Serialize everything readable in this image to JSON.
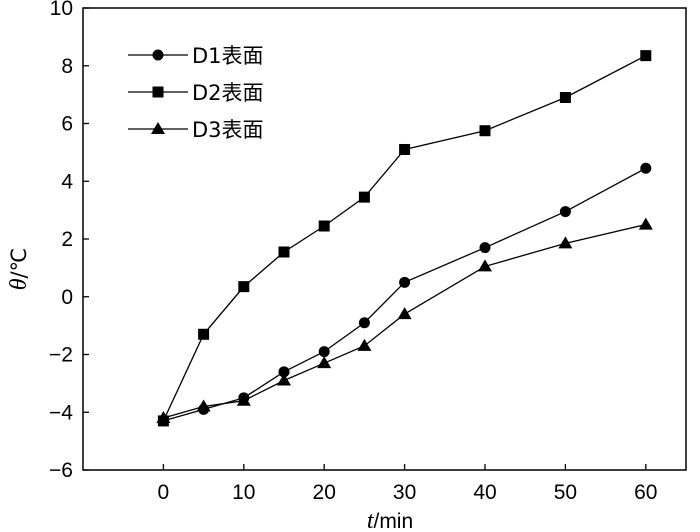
{
  "chart_data": {
    "type": "line",
    "xlabel": {
      "var": "t",
      "unit": "/min"
    },
    "ylabel": {
      "var": "θ",
      "unit": "/℃"
    },
    "xlim": [
      -10,
      65
    ],
    "ylim": [
      -6,
      10
    ],
    "xticks": [
      0,
      10,
      20,
      30,
      40,
      50,
      60
    ],
    "yticks": [
      -6,
      -4,
      -2,
      0,
      2,
      4,
      6,
      8,
      10
    ],
    "ytick_labels": [
      "−6",
      "−4",
      "−2",
      "0",
      "2",
      "4",
      "6",
      "8",
      "10"
    ],
    "legend_position": "top-left",
    "grid": false,
    "series": [
      {
        "name": "D1表面",
        "marker": "circle",
        "x": [
          0,
          5,
          10,
          15,
          20,
          25,
          30,
          40,
          50,
          60
        ],
        "values": [
          -4.3,
          -3.9,
          -3.5,
          -2.6,
          -1.9,
          -0.9,
          0.5,
          1.7,
          2.95,
          4.45
        ]
      },
      {
        "name": "D2表面",
        "marker": "square",
        "x": [
          0,
          5,
          10,
          15,
          20,
          25,
          30,
          40,
          50,
          60
        ],
        "values": [
          -4.3,
          -1.3,
          0.35,
          1.55,
          2.45,
          3.45,
          5.1,
          5.75,
          6.9,
          8.35
        ]
      },
      {
        "name": "D3表面",
        "marker": "triangle",
        "x": [
          0,
          5,
          10,
          15,
          20,
          25,
          30,
          40,
          50,
          60
        ],
        "values": [
          -4.2,
          -3.8,
          -3.6,
          -2.9,
          -2.3,
          -1.7,
          -0.6,
          1.05,
          1.85,
          2.5
        ]
      }
    ]
  }
}
